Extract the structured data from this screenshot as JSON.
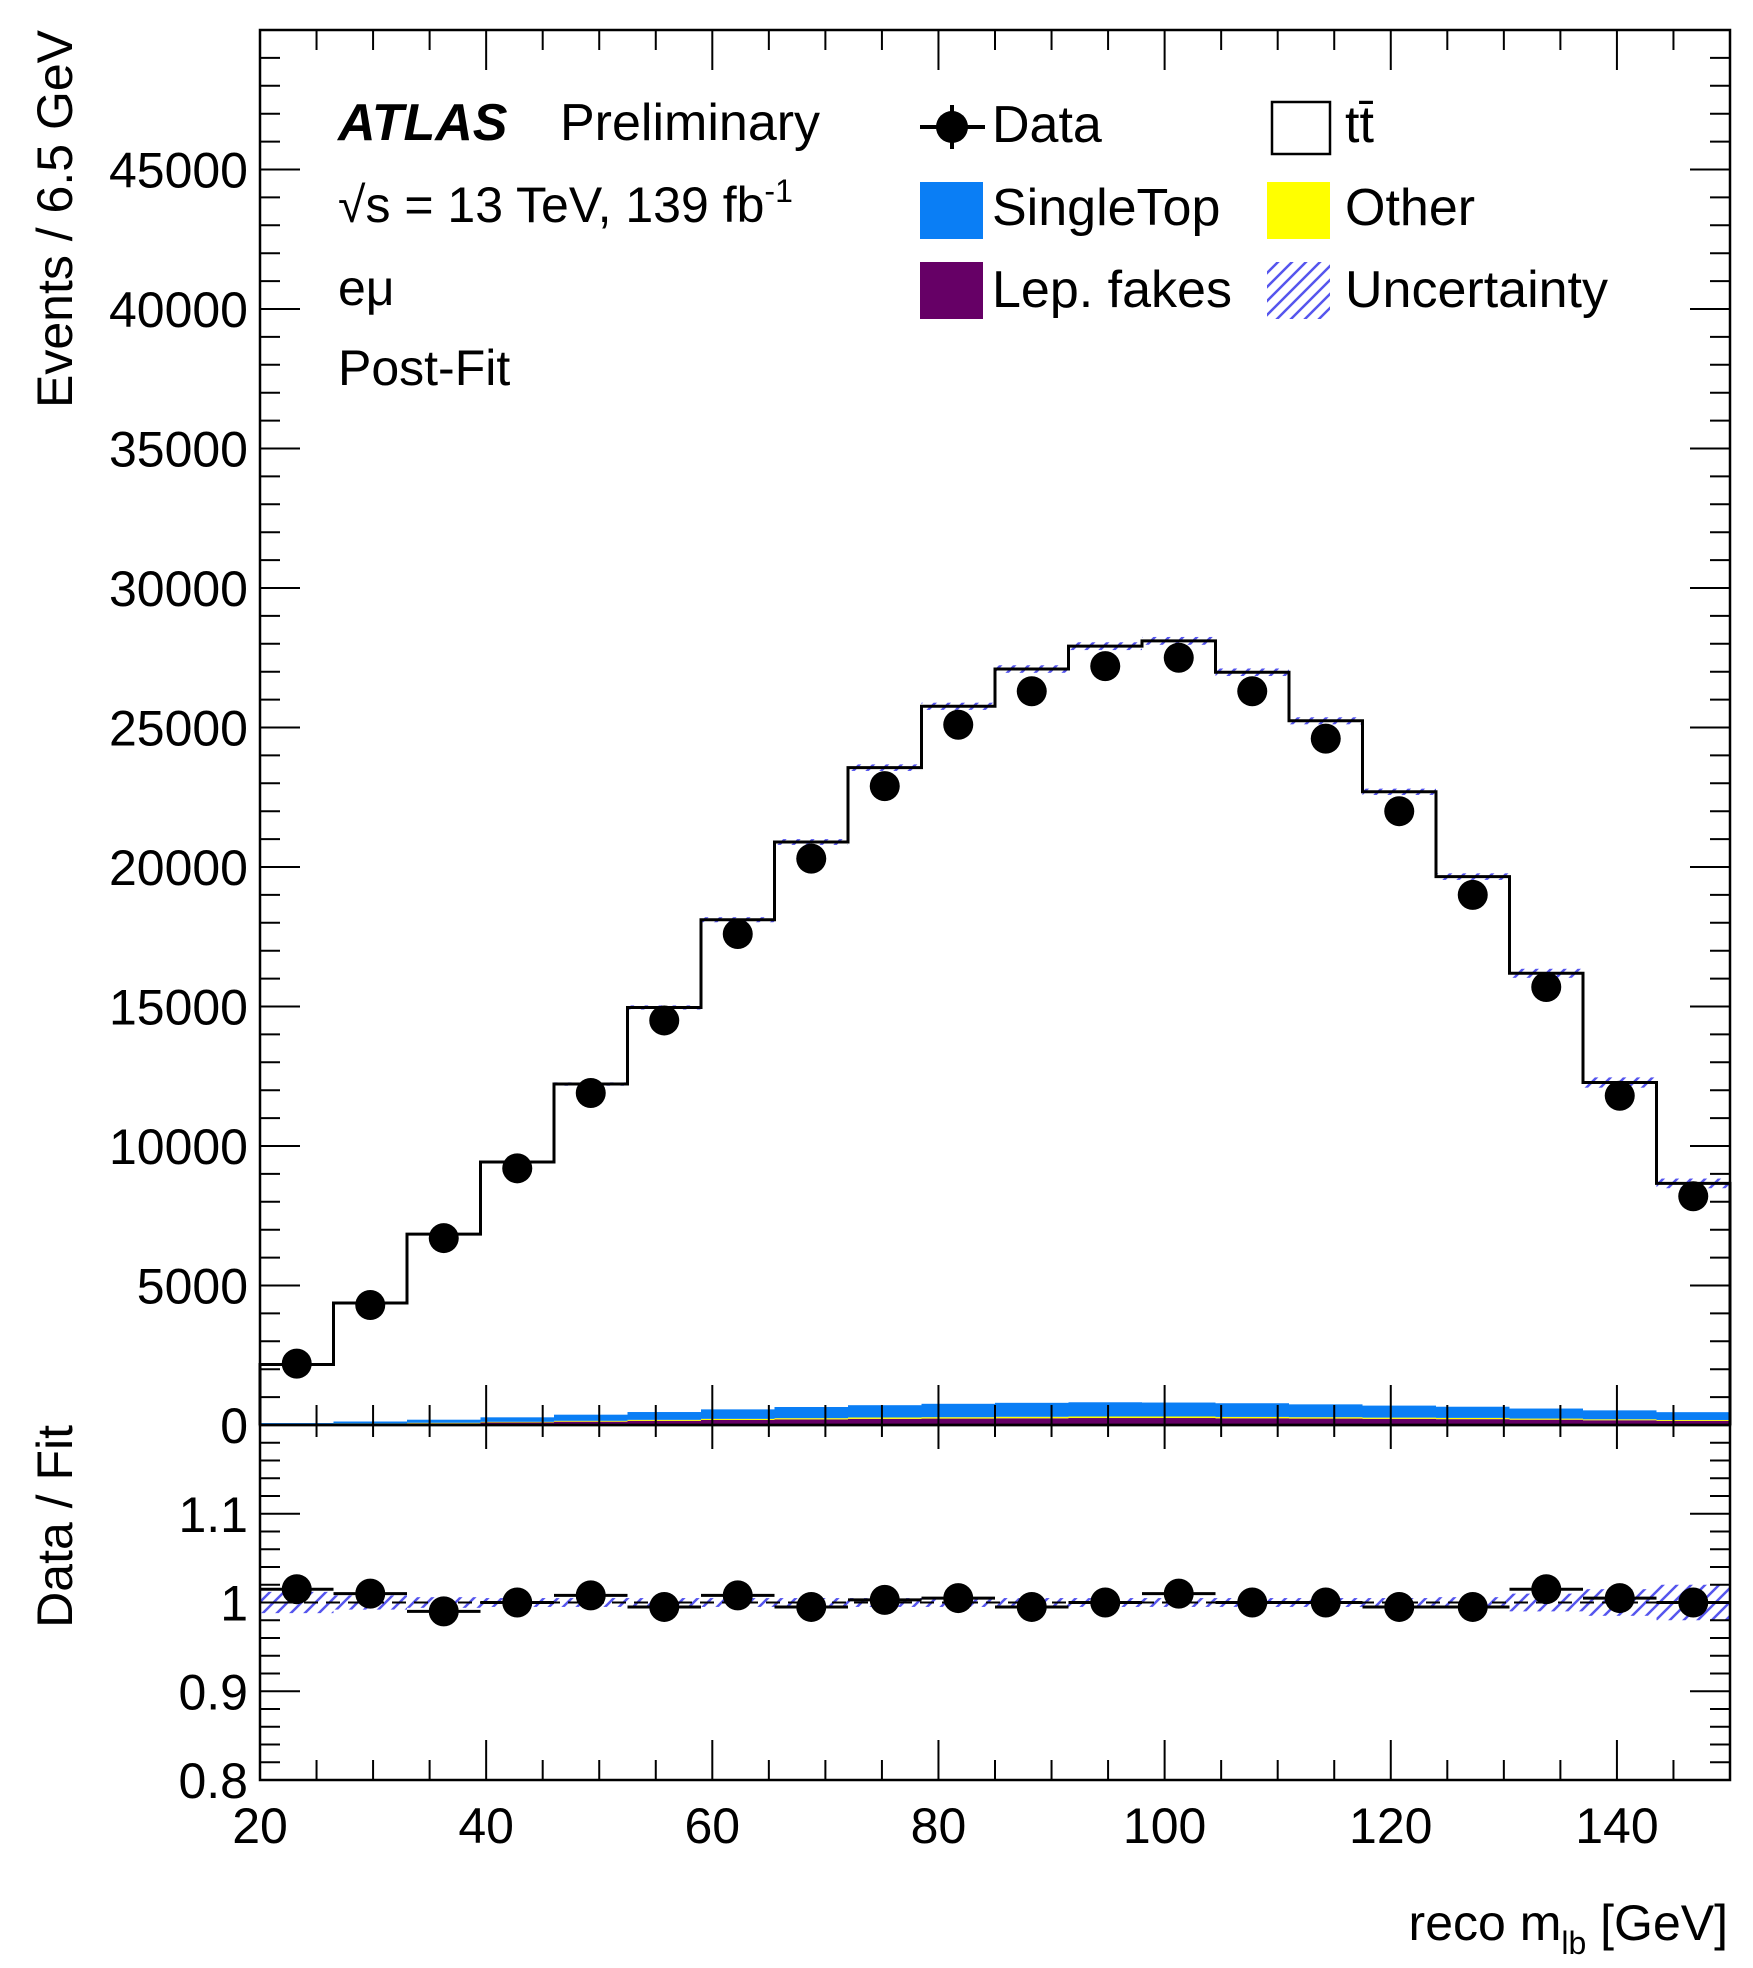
{
  "chart_data": {
    "type": "histogram",
    "experiment": "ATLAS",
    "label": "Preliminary",
    "energy_lumi": {
      "prefix": "√s = 13 TeV, 139 fb",
      "sup": "-1"
    },
    "channel": "eμ",
    "fit_stage": "Post-Fit",
    "xlabel": {
      "prefix": "reco m",
      "sub": "lb",
      "suffix": " [GeV]"
    },
    "ylabel": "Events / 6.5 GeV",
    "ratio_ylabel": "Data / Fit",
    "xlim": [
      20,
      150
    ],
    "ylim": [
      0,
      50000
    ],
    "ratio_ylim": [
      0.8,
      1.2
    ],
    "x_ticks": [
      20,
      40,
      60,
      80,
      100,
      120,
      140
    ],
    "y_ticks": [
      0,
      5000,
      10000,
      15000,
      20000,
      25000,
      30000,
      35000,
      40000,
      45000
    ],
    "ratio_y_ticks": [
      0.8,
      0.9,
      1,
      1.1
    ],
    "bin_edges": [
      20,
      26.5,
      33,
      39.5,
      46,
      52.5,
      59,
      65.5,
      72,
      78.5,
      85,
      91.5,
      98,
      104.5,
      111,
      117.5,
      124,
      130.5,
      137,
      143.5,
      150
    ],
    "series": [
      {
        "name": "Data",
        "values": [
          2200,
          4300,
          6700,
          9200,
          11900,
          14500,
          17600,
          20300,
          22900,
          25100,
          26300,
          27200,
          27500,
          26300,
          24600,
          22000,
          19000,
          15700,
          11800,
          8200
        ]
      },
      {
        "name": "tt̄",
        "values": [
          2100,
          4250,
          6650,
          9150,
          11850,
          14500,
          17550,
          20250,
          22850,
          25000,
          26300,
          27100,
          27300,
          26200,
          24500,
          22000,
          19000,
          15600,
          11750,
          8200
        ]
      },
      {
        "name": "SingleTop",
        "values": [
          40,
          70,
          110,
          160,
          220,
          280,
          340,
          400,
          440,
          480,
          500,
          510,
          500,
          490,
          460,
          430,
          400,
          360,
          320,
          280
        ]
      },
      {
        "name": "Other",
        "values": [
          10,
          15,
          20,
          25,
          30,
          35,
          40,
          45,
          50,
          50,
          55,
          55,
          55,
          50,
          50,
          45,
          45,
          40,
          35,
          30
        ]
      },
      {
        "name": "Lep. fakes",
        "values": [
          20,
          40,
          60,
          90,
          120,
          150,
          180,
          200,
          220,
          230,
          240,
          250,
          250,
          240,
          230,
          220,
          210,
          190,
          170,
          150
        ]
      }
    ],
    "ratio": [
      1.015,
      1.01,
      0.99,
      1.0,
      1.008,
      0.995,
      1.008,
      0.995,
      1.003,
      1.005,
      0.995,
      1.0,
      1.01,
      1.0,
      1.0,
      0.995,
      0.995,
      1.015,
      1.005,
      1.0
    ],
    "ratio_uncertainty": [
      0.012,
      0.008,
      0.006,
      0.005,
      0.005,
      0.005,
      0.005,
      0.005,
      0.005,
      0.005,
      0.005,
      0.005,
      0.005,
      0.005,
      0.005,
      0.005,
      0.006,
      0.01,
      0.015,
      0.02
    ],
    "legend": [
      {
        "name": "Data",
        "style": "marker"
      },
      {
        "name": "tt̄",
        "style": "box"
      },
      {
        "name": "SingleTop",
        "style": "fill",
        "color": "#0a7ef5"
      },
      {
        "name": "Other",
        "style": "fill",
        "color": "#ffff00"
      },
      {
        "name": "Lep. fakes",
        "style": "fill",
        "color": "#660066"
      },
      {
        "name": "Uncertainty",
        "style": "hatch",
        "color": "#5555ee"
      }
    ],
    "legend_position": "top-right",
    "colors": {
      "singletop": "#0a7ef5",
      "other": "#ffff00",
      "fakes": "#660066",
      "uncertainty": "#5555ee"
    }
  }
}
